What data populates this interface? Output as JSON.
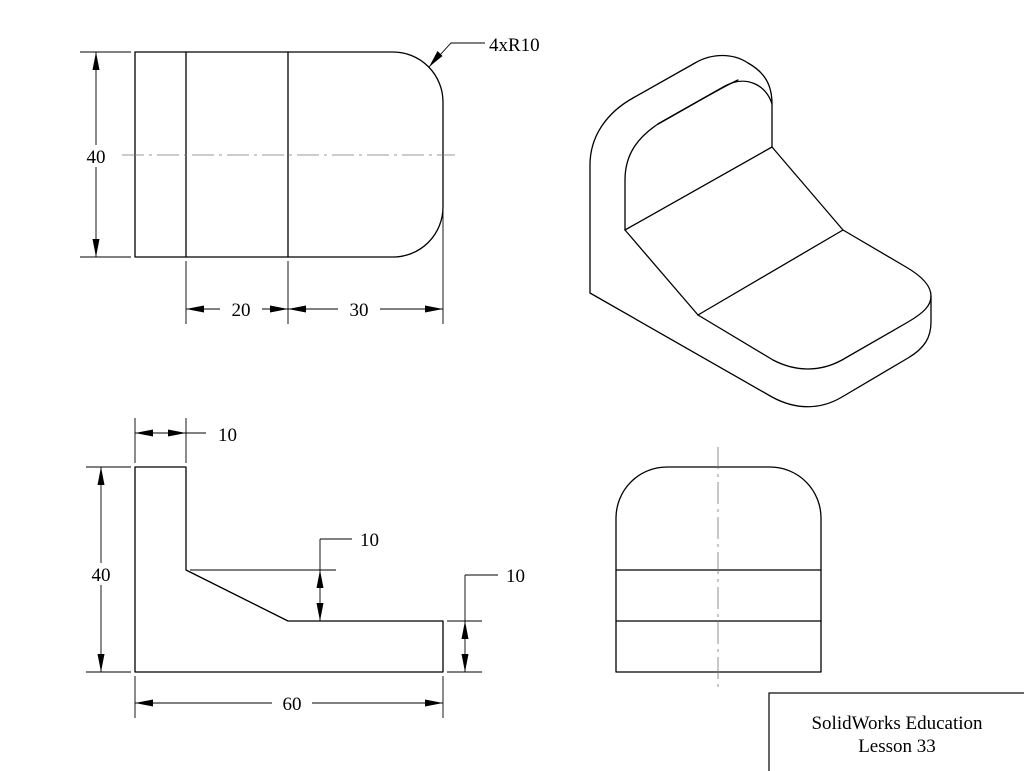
{
  "top_view": {
    "height_dim": "40",
    "width_dim_1": "20",
    "width_dim_2": "30",
    "radius_note": "4xR10"
  },
  "front_view": {
    "wall_dim": "10",
    "height_dim": "40",
    "chamfer_dim": "10",
    "base_dim": "10",
    "length_dim": "60"
  },
  "title_block": {
    "line1": "SolidWorks Education",
    "line2": "Lesson 33"
  }
}
